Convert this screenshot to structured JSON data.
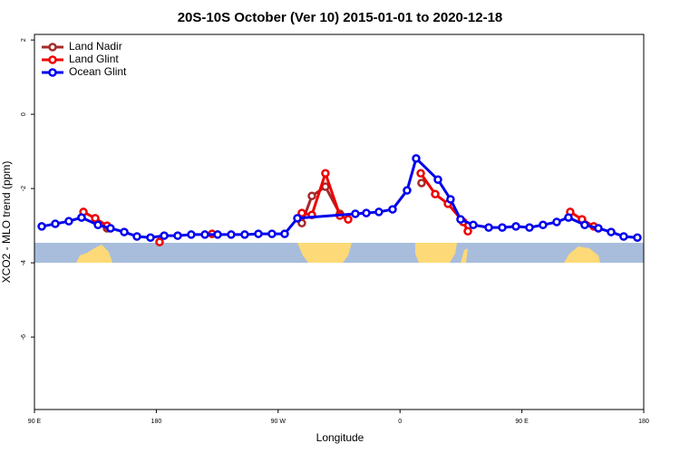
{
  "chart_data": {
    "type": "line",
    "title": "20S-10S October (Ver 10)   2015-01-01 to 2020-12-18",
    "x_label": "Longitude",
    "y_label": "XCO2 - MLO trend (ppm)",
    "xlim": [
      90,
      540
    ],
    "ylim": [
      -7.95,
      2.15
    ],
    "xticks": [
      {
        "value": 90,
        "label": "90 E"
      },
      180,
      {
        "value": 270,
        "label": "90 W"
      },
      {
        "value": 360,
        "label": "0"
      },
      {
        "value": 450,
        "label": "90 E"
      },
      {
        "value": 540,
        "label": "180"
      }
    ],
    "yticks": [
      2,
      0,
      -2,
      -4,
      -6
    ],
    "legend": "top-left",
    "series": [
      {
        "name": "Land Nadir",
        "color": "#a52a2a",
        "x": [
          143.6,
          null,
          287.5,
          294.9,
          304.9,
          315.6,
          null,
          375.9
        ],
        "values": [
          -3.07,
          null,
          -2.93,
          -2.2,
          -1.95,
          -2.68,
          null,
          -1.85
        ]
      },
      {
        "name": "Land Glint",
        "color": "#ee0000",
        "x": [
          126.2,
          134.9,
          143.6,
          null,
          182.4,
          null,
          221.2,
          null,
          287.5,
          294.9,
          304.9,
          315.6,
          321.7,
          null,
          375.3,
          386.0,
          395.4,
          406.7,
          410.1,
          null,
          485.7,
          494.4,
          503.1
        ],
        "values": [
          -2.63,
          -2.8,
          -3.0,
          null,
          -3.44,
          null,
          -3.22,
          null,
          -2.66,
          -2.71,
          -1.59,
          -2.73,
          -2.83,
          null,
          -1.59,
          -2.15,
          -2.41,
          -2.9,
          -3.15,
          null,
          -2.63,
          -2.83,
          -3.02
        ]
      },
      {
        "name": "Ocean Glint",
        "color": "#0000ee",
        "x": [
          95.4,
          105.4,
          115.4,
          124.8,
          136.9,
          146.2,
          156.3,
          165.7,
          175.7,
          185.8,
          195.8,
          205.8,
          215.9,
          225.3,
          235.3,
          245.3,
          255.4,
          265.4,
          274.8,
          284.2,
          327.0,
          335.1,
          344.4,
          354.5,
          365.2,
          371.9,
          388.0,
          397.3,
          404.7,
          414.1,
          425.5,
          435.5,
          445.6,
          455.6,
          465.6,
          475.7,
          484.4,
          496.4,
          506.5,
          515.9,
          525.2,
          535.3
        ],
        "values": [
          -3.02,
          -2.95,
          -2.88,
          -2.78,
          -2.98,
          -3.07,
          -3.17,
          -3.29,
          -3.32,
          -3.27,
          -3.27,
          -3.24,
          -3.24,
          -3.24,
          -3.24,
          -3.24,
          -3.22,
          -3.22,
          -3.22,
          -2.8,
          -2.68,
          -2.66,
          -2.63,
          -2.56,
          -2.05,
          -1.19,
          -1.76,
          -2.29,
          -2.83,
          -2.98,
          -3.05,
          -3.05,
          -3.02,
          -3.05,
          -2.98,
          -2.9,
          -2.78,
          -2.98,
          -3.07,
          -3.17,
          -3.29,
          -3.32
        ]
      }
    ]
  }
}
